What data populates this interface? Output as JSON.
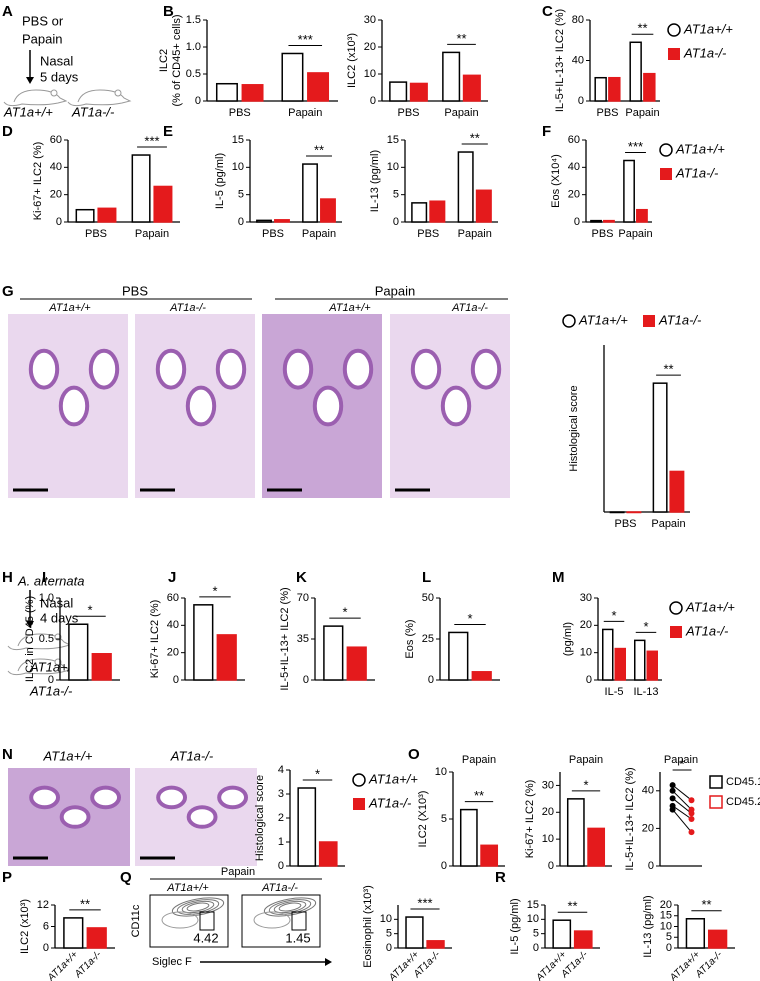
{
  "panel_labels": [
    "A",
    "B",
    "C",
    "D",
    "E",
    "F",
    "G",
    "H",
    "I",
    "J",
    "K",
    "L",
    "M",
    "N",
    "O",
    "P",
    "Q",
    "R"
  ],
  "schematic_a": {
    "treatment": [
      "PBS or",
      "Papain"
    ],
    "route": "Nasal",
    "duration": "5 days",
    "groups": [
      "AT1a+/+",
      "AT1a-/-"
    ]
  },
  "schematic_h": {
    "agent": "A. alternata",
    "route": "Nasal",
    "duration": "4 days",
    "groups": [
      "AT1a+/+",
      "AT1a-/-"
    ]
  },
  "histology_g": {
    "conditions": [
      "PBS",
      "Papain"
    ],
    "groups": [
      "AT1a+/+",
      "AT1a-/-",
      "AT1a+/+",
      "AT1a-/-"
    ]
  },
  "histology_n": {
    "groups": [
      "AT1a+/+",
      "AT1a-/-"
    ]
  },
  "flow_q": {
    "title": "Papain",
    "groups": [
      "AT1a+/+",
      "AT1a-/-"
    ],
    "ylabel": "CD11c",
    "xlabel": "Siglec F",
    "gates": [
      4.42,
      1.45
    ]
  },
  "chart_data": [
    {
      "type": "bar",
      "ylabel": [
        "ILC2",
        "(% of CD45+ cells)"
      ],
      "categories": [
        "PBS",
        "Papain"
      ],
      "series": [
        {
          "color": "#ffffff",
          "values": [
            0.32,
            0.88
          ]
        },
        {
          "color": "#e41a1c",
          "values": [
            0.3,
            0.52
          ]
        }
      ],
      "ylim": [
        0,
        1.5
      ],
      "yticks": [
        0,
        0.5,
        {
          "value": 1,
          "label": "1.0"
        },
        1.5
      ],
      "significance": [
        null,
        "***"
      ]
    },
    {
      "type": "bar",
      "ylabel": [
        "ILC2 (x10³)"
      ],
      "categories": [
        "PBS",
        "Papain"
      ],
      "series": [
        {
          "color": "#ffffff",
          "values": [
            7,
            18
          ]
        },
        {
          "color": "#e41a1c",
          "values": [
            6.5,
            9.5
          ]
        }
      ],
      "ylim": [
        0,
        30
      ],
      "yticks": [
        0,
        10,
        20,
        30
      ],
      "significance": [
        null,
        "**"
      ]
    },
    {
      "type": "bar",
      "ylabel": [
        "IL-5+IL-13+ ILC2 (%)"
      ],
      "categories": [
        "PBS",
        "Papain"
      ],
      "series": [
        {
          "name": "AT1a+/+",
          "color": "#ffffff",
          "values": [
            23,
            58
          ]
        },
        {
          "name": "AT1a-/-",
          "color": "#e41a1c",
          "values": [
            23,
            27
          ]
        }
      ],
      "ylim": [
        0,
        80
      ],
      "yticks": [
        0,
        40,
        80
      ],
      "significance": [
        null,
        "**"
      ],
      "legend": "right"
    },
    {
      "type": "bar",
      "ylabel": [
        "Ki-67+ ILC2 (%)"
      ],
      "categories": [
        "PBS",
        "Papain"
      ],
      "series": [
        {
          "color": "#ffffff",
          "values": [
            9,
            49
          ]
        },
        {
          "color": "#e41a1c",
          "values": [
            10,
            26
          ]
        }
      ],
      "ylim": [
        0,
        60
      ],
      "yticks": [
        0,
        20,
        40,
        60
      ],
      "significance": [
        null,
        "***"
      ]
    },
    {
      "type": "bar",
      "ylabel": [
        "IL-5 (pg/ml)"
      ],
      "categories": [
        "PBS",
        "Papain"
      ],
      "series": [
        {
          "color": "#ffffff",
          "values": [
            0.3,
            10.6
          ]
        },
        {
          "color": "#e41a1c",
          "values": [
            0.4,
            4.2
          ]
        }
      ],
      "ylim": [
        0,
        15
      ],
      "yticks": [
        0,
        5,
        10,
        15
      ],
      "significance": [
        null,
        "**"
      ]
    },
    {
      "type": "bar",
      "ylabel": [
        "IL-13 (pg/ml)"
      ],
      "categories": [
        "PBS",
        "Papain"
      ],
      "series": [
        {
          "color": "#ffffff",
          "values": [
            3.5,
            12.8
          ]
        },
        {
          "color": "#e41a1c",
          "values": [
            3.8,
            5.8
          ]
        }
      ],
      "ylim": [
        0,
        15
      ],
      "yticks": [
        0,
        5,
        10,
        15
      ],
      "significance": [
        null,
        "**"
      ]
    },
    {
      "type": "bar",
      "ylabel": [
        "Eos (X10⁴)"
      ],
      "categories": [
        "PBS",
        "Papain"
      ],
      "series": [
        {
          "name": "AT1a+/+",
          "color": "#ffffff",
          "values": [
            1,
            45
          ]
        },
        {
          "name": "AT1a-/-",
          "color": "#e41a1c",
          "values": [
            1,
            9
          ]
        }
      ],
      "ylim": [
        0,
        60
      ],
      "yticks": [
        0,
        20,
        40,
        60
      ],
      "significance": [
        null,
        "***"
      ],
      "legend": "right"
    },
    {
      "type": "bar",
      "ylabel": [
        "Histological score"
      ],
      "categories": [
        "PBS",
        "Papain"
      ],
      "series": [
        {
          "name": "AT1a+/+",
          "color": "#ffffff",
          "values": [
            0,
            2.7
          ]
        },
        {
          "name": "AT1a-/-",
          "color": "#e41a1c",
          "values": [
            0,
            0.85
          ]
        }
      ],
      "ylim": [
        0,
        3.5
      ],
      "significance": [
        null,
        "**"
      ],
      "legend": "top"
    },
    {
      "type": "bar",
      "ylabel": [
        "ILC2 in CD45 (%)"
      ],
      "categories": [
        null
      ],
      "series": [
        {
          "color": "#ffffff",
          "values": [
            0.68
          ]
        },
        {
          "color": "#e41a1c",
          "values": [
            0.32
          ]
        }
      ],
      "ylim": [
        0,
        1
      ],
      "yticks": [
        0,
        0.5,
        {
          "value": 1,
          "label": "1.0"
        }
      ],
      "significance": [
        "*"
      ]
    },
    {
      "type": "bar",
      "ylabel": [
        "Ki-67+ ILC2 (%)"
      ],
      "categories": [
        null
      ],
      "series": [
        {
          "color": "#ffffff",
          "values": [
            55
          ]
        },
        {
          "color": "#e41a1c",
          "values": [
            33
          ]
        }
      ],
      "ylim": [
        0,
        60
      ],
      "yticks": [
        0,
        20,
        40,
        60
      ],
      "significance": [
        "*"
      ]
    },
    {
      "type": "bar",
      "ylabel": [
        "IL-5+IL-13+ ILC2 (%)"
      ],
      "categories": [
        null
      ],
      "series": [
        {
          "color": "#ffffff",
          "values": [
            46
          ]
        },
        {
          "color": "#e41a1c",
          "values": [
            28
          ]
        }
      ],
      "ylim": [
        0,
        70
      ],
      "yticks": [
        0,
        35,
        70
      ],
      "significance": [
        "*"
      ]
    },
    {
      "type": "bar",
      "ylabel": [
        "Eos (%)"
      ],
      "categories": [
        null
      ],
      "series": [
        {
          "color": "#ffffff",
          "values": [
            29
          ]
        },
        {
          "color": "#e41a1c",
          "values": [
            5
          ]
        }
      ],
      "ylim": [
        0,
        50
      ],
      "yticks": [
        0,
        25,
        50
      ],
      "significance": [
        "*"
      ]
    },
    {
      "type": "bar",
      "ylabel": [
        "(pg/ml)"
      ],
      "categories": [
        "IL-5",
        "IL-13"
      ],
      "series": [
        {
          "name": "AT1a+/+",
          "color": "#ffffff",
          "values": [
            18.5,
            14.5
          ]
        },
        {
          "name": "AT1a-/-",
          "color": "#e41a1c",
          "values": [
            11.5,
            10.5
          ]
        }
      ],
      "ylim": [
        0,
        30
      ],
      "yticks": [
        0,
        10,
        20,
        30
      ],
      "significance": [
        "*",
        "*"
      ],
      "legend": "right"
    },
    {
      "type": "bar",
      "ylabel": [
        "Histological score"
      ],
      "categories": [
        null
      ],
      "series": [
        {
          "name": "AT1a+/+",
          "color": "#ffffff",
          "values": [
            3.25
          ]
        },
        {
          "name": "AT1a-/-",
          "color": "#e41a1c",
          "values": [
            1
          ]
        }
      ],
      "ylim": [
        0,
        4
      ],
      "yticks": [
        0,
        1,
        2,
        3,
        4
      ],
      "significance": [
        "*"
      ],
      "legend": "right"
    },
    {
      "type": "bar",
      "title": "Papain",
      "ylabel": [
        "ILC2 (X10³)"
      ],
      "categories": [
        null
      ],
      "series": [
        {
          "color": "#ffffff",
          "values": [
            6
          ]
        },
        {
          "color": "#e41a1c",
          "values": [
            2.2
          ]
        }
      ],
      "ylim": [
        0,
        10
      ],
      "yticks": [
        0,
        5,
        10
      ],
      "significance": [
        "**"
      ]
    },
    {
      "type": "bar",
      "title": "Papain",
      "ylabel": [
        "Ki-67+ ILC2 (%)"
      ],
      "categories": [
        null
      ],
      "series": [
        {
          "color": "#ffffff",
          "values": [
            25
          ]
        },
        {
          "color": "#e41a1c",
          "values": [
            14
          ]
        }
      ],
      "ylim": [
        0,
        35
      ],
      "yticks": [
        0,
        10,
        20,
        30
      ],
      "significance": [
        "*"
      ]
    },
    {
      "type": "paired",
      "title": "Papain",
      "ylabel": [
        "IL-5+IL-13+ ILC2 (%)"
      ],
      "series": [
        {
          "name": "CD45.1",
          "color": "#000000",
          "values": [
            43,
            40,
            36,
            32,
            30
          ]
        },
        {
          "name": "CD45.2",
          "color": "#e41a1c",
          "values": [
            35,
            30,
            28,
            25,
            18
          ]
        }
      ],
      "ylim": [
        0,
        50
      ],
      "yticks": [
        0,
        20,
        40
      ],
      "significance": "*",
      "legend": "right"
    },
    {
      "type": "bar",
      "ylabel": [
        "ILC2 (x10³)"
      ],
      "categories": [
        null
      ],
      "series": [
        {
          "name": "AT1a+/+",
          "color": "#ffffff",
          "values": [
            8.4
          ]
        },
        {
          "name": "AT1a-/-",
          "color": "#e41a1c",
          "values": [
            5.6
          ]
        }
      ],
      "ylim": [
        0,
        12
      ],
      "yticks": [
        0,
        6,
        12
      ],
      "significance": [
        "**"
      ],
      "legend": "below"
    },
    {
      "type": "bar",
      "ylabel": [
        "Eosinophil (x10³)"
      ],
      "categories": [
        null
      ],
      "series": [
        {
          "name": "AT1a+/+",
          "color": "#ffffff",
          "values": [
            10.8
          ]
        },
        {
          "name": "AT1a-/-",
          "color": "#e41a1c",
          "values": [
            2.5
          ]
        }
      ],
      "ylim": [
        0,
        15
      ],
      "yticks": [
        0,
        5,
        10
      ],
      "significance": [
        "***"
      ],
      "legend": "below"
    },
    {
      "type": "bar",
      "ylabel": [
        "IL-5 (pg/ml)"
      ],
      "categories": [
        null
      ],
      "series": [
        {
          "name": "AT1a+/+",
          "color": "#ffffff",
          "values": [
            9.7
          ]
        },
        {
          "name": "AT1a-/-",
          "color": "#e41a1c",
          "values": [
            5.9
          ]
        }
      ],
      "ylim": [
        0,
        15
      ],
      "yticks": [
        0,
        5,
        10,
        15
      ],
      "significance": [
        "**"
      ],
      "legend": "below"
    },
    {
      "type": "bar",
      "ylabel": [
        "IL-13 (pg/ml)"
      ],
      "categories": [
        null
      ],
      "series": [
        {
          "name": "AT1a+/+",
          "color": "#ffffff",
          "values": [
            13.6
          ]
        },
        {
          "name": "AT1a-/-",
          "color": "#e41a1c",
          "values": [
            8.2
          ]
        }
      ],
      "ylim": [
        0,
        20
      ],
      "yticks": [
        0,
        5,
        10,
        15,
        20
      ],
      "significance": [
        "**"
      ],
      "legend": "below"
    }
  ]
}
